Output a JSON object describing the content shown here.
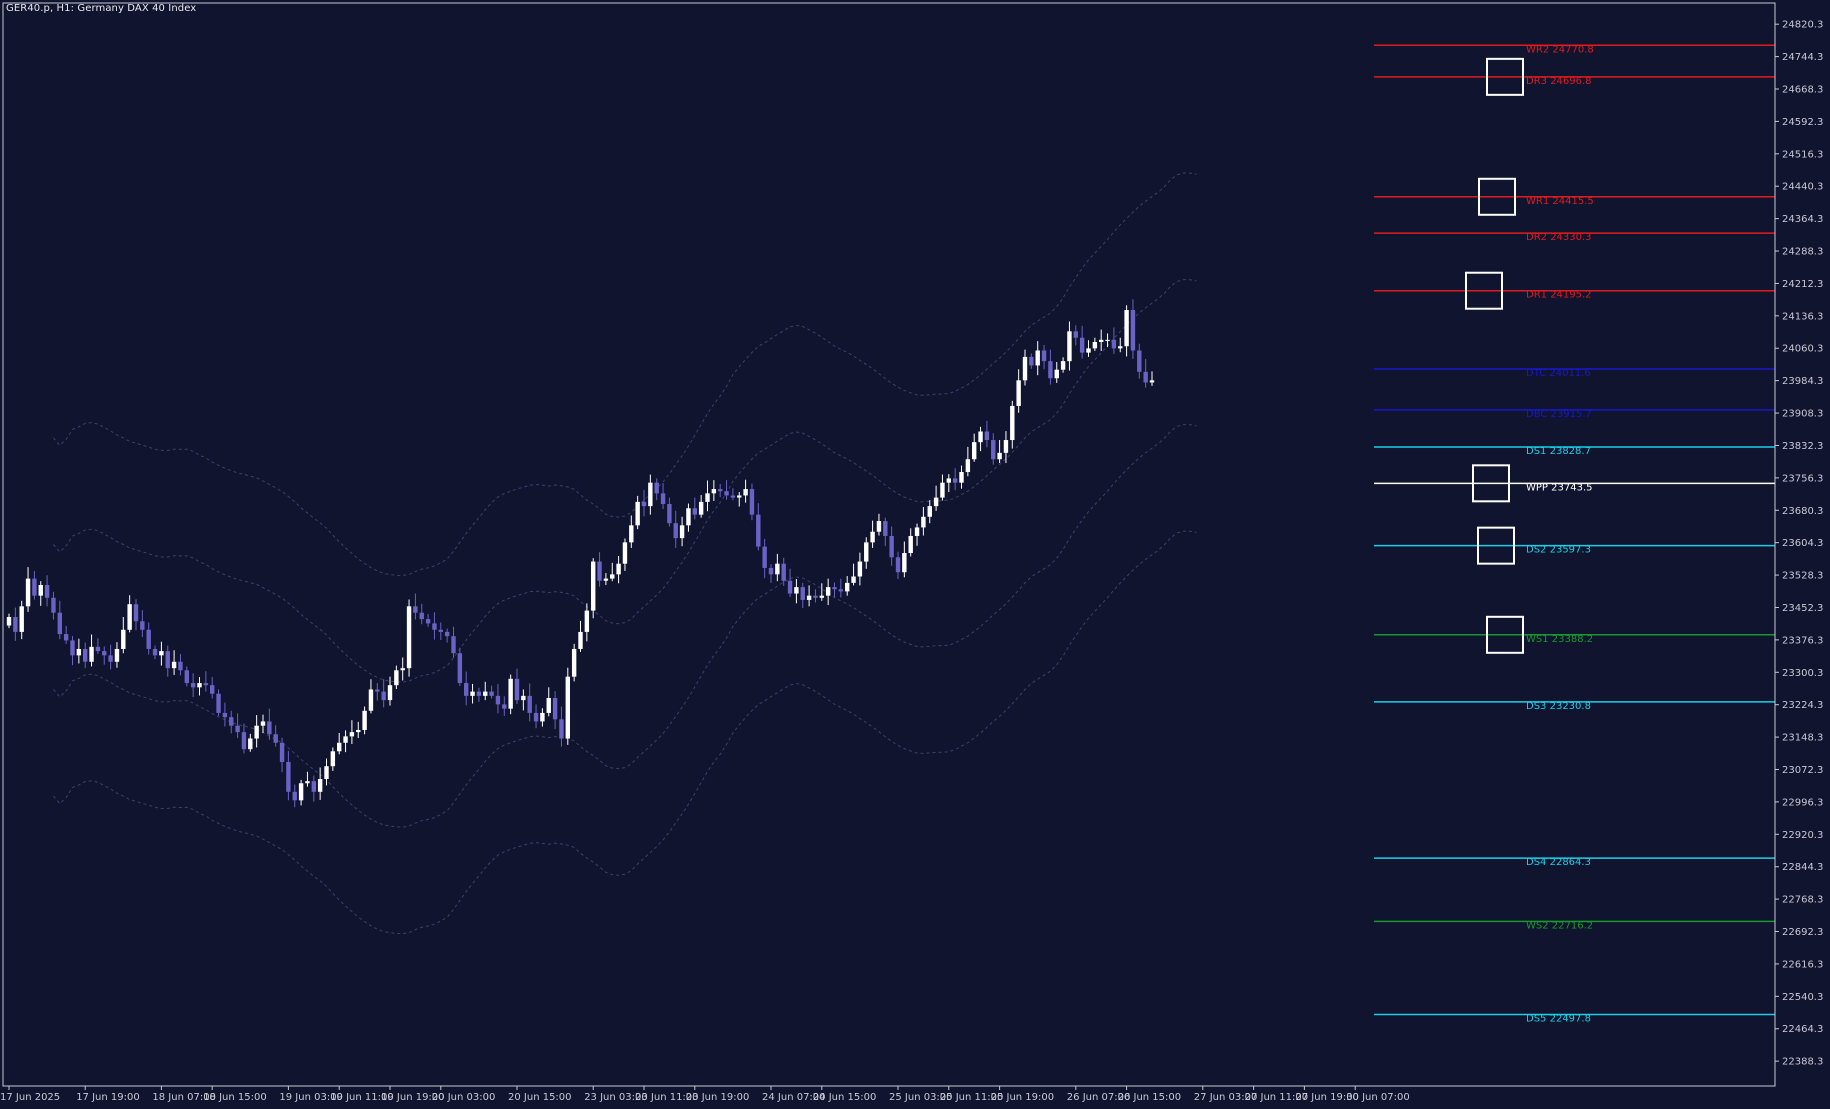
{
  "header": {
    "symbol_title": "GER40.p, H1:  Germany DAX 40 Index"
  },
  "colors": {
    "background": "#11142f",
    "axis": "#c8c8d4",
    "text": "#c8c8d4",
    "bull_candle": "#ffffff",
    "bear_candle": "#6a62c4",
    "band": "#3c4270"
  },
  "chart_data": {
    "type": "candlestick",
    "symbol": "GER40.p",
    "timeframe": "H1",
    "ylim": [
      22330,
      24870
    ],
    "y_ticks": [
      "24820.3",
      "24744.3",
      "24668.3",
      "24592.3",
      "24516.3",
      "24440.3",
      "24364.3",
      "24288.3",
      "24212.3",
      "24136.3",
      "24060.3",
      "23984.3",
      "23908.3",
      "23832.3",
      "23756.3",
      "23680.3",
      "23604.3",
      "23528.3",
      "23452.3",
      "23376.3",
      "23300.3",
      "23224.3",
      "23148.3",
      "23072.3",
      "22996.3",
      "22920.3",
      "22844.3",
      "22768.3",
      "22692.3",
      "22616.3",
      "22540.3",
      "22464.3",
      "22388.3"
    ],
    "x_ticks": [
      {
        "label": "17 Jun 2025",
        "bar": 0
      },
      {
        "label": "17 Jun 19:00",
        "bar": 12
      },
      {
        "label": "18 Jun 07:00",
        "bar": 24
      },
      {
        "label": "18 Jun 15:00",
        "bar": 32
      },
      {
        "label": "19 Jun 03:00",
        "bar": 44
      },
      {
        "label": "19 Jun 11:00",
        "bar": 52
      },
      {
        "label": "19 Jun 19:00",
        "bar": 60
      },
      {
        "label": "20 Jun 03:00",
        "bar": 68
      },
      {
        "label": "20 Jun 15:00",
        "bar": 80
      },
      {
        "label": "23 Jun 03:00",
        "bar": 92
      },
      {
        "label": "23 Jun 11:00",
        "bar": 100
      },
      {
        "label": "23 Jun 19:00",
        "bar": 108
      },
      {
        "label": "24 Jun 07:00",
        "bar": 120
      },
      {
        "label": "24 Jun 15:00",
        "bar": 128
      },
      {
        "label": "25 Jun 03:00",
        "bar": 140
      },
      {
        "label": "25 Jun 11:00",
        "bar": 148
      },
      {
        "label": "25 Jun 19:00",
        "bar": 156
      },
      {
        "label": "26 Jun 07:00",
        "bar": 168
      },
      {
        "label": "26 Jun 15:00",
        "bar": 176
      },
      {
        "label": "27 Jun 03:00",
        "bar": 188
      },
      {
        "label": "27 Jun 11:00",
        "bar": 196
      },
      {
        "label": "27 Jun 19:00",
        "bar": 204
      },
      {
        "label": "30 Jun 07:00",
        "bar": 212
      }
    ],
    "closes": [
      23430,
      23395,
      23455,
      23520,
      23480,
      23505,
      23475,
      23440,
      23390,
      23375,
      23340,
      23355,
      23325,
      23360,
      23350,
      23340,
      23325,
      23355,
      23400,
      23460,
      23420,
      23400,
      23355,
      23340,
      23350,
      23310,
      23325,
      23305,
      23275,
      23265,
      23275,
      23270,
      23250,
      23205,
      23195,
      23175,
      23160,
      23120,
      23145,
      23175,
      23185,
      23155,
      23135,
      23090,
      23020,
      23000,
      23040,
      23045,
      23020,
      23050,
      23080,
      23115,
      23135,
      23150,
      23160,
      23165,
      23210,
      23260,
      23255,
      23235,
      23270,
      23305,
      23310,
      23455,
      23440,
      23425,
      23415,
      23400,
      23395,
      23385,
      23345,
      23275,
      23245,
      23255,
      23245,
      23255,
      23245,
      23225,
      23215,
      23285,
      23235,
      23245,
      23205,
      23185,
      23205,
      23240,
      23190,
      23145,
      23290,
      23355,
      23395,
      23445,
      23560,
      23515,
      23520,
      23530,
      23555,
      23605,
      23645,
      23700,
      23690,
      23745,
      23720,
      23695,
      23650,
      23615,
      23645,
      23685,
      23670,
      23700,
      23720,
      23730,
      23725,
      23715,
      23710,
      23715,
      23730,
      23670,
      23595,
      23545,
      23530,
      23555,
      23515,
      23485,
      23500,
      23470,
      23480,
      23475,
      23480,
      23500,
      23495,
      23490,
      23510,
      23525,
      23560,
      23605,
      23630,
      23655,
      23620,
      23570,
      23535,
      23580,
      23620,
      23640,
      23665,
      23690,
      23710,
      23745,
      23755,
      23745,
      23770,
      23800,
      23840,
      23865,
      23845,
      23800,
      23815,
      23845,
      23925,
      23985,
      24040,
      24020,
      24055,
      24030,
      23990,
      24010,
      24030,
      24100,
      24085,
      24050,
      24060,
      24075,
      24080,
      24080,
      24060,
      24065,
      24150,
      24055,
      24005,
      23980,
      23985
    ],
    "reference_lines": [
      {
        "label": "WR2 24770.8",
        "value": 24770.8,
        "color": "#e01b1b"
      },
      {
        "label": "DR3 24696.8",
        "value": 24696.8,
        "color": "#e01b1b"
      },
      {
        "label": "WR1 24415.5",
        "value": 24415.5,
        "color": "#e01b1b"
      },
      {
        "label": "DR2 24330.3",
        "value": 24330.3,
        "color": "#e01b1b"
      },
      {
        "label": "DR1 24195.2",
        "value": 24195.2,
        "color": "#e01b1b"
      },
      {
        "label": "DTC 24011.6",
        "value": 24011.6,
        "color": "#1818c8"
      },
      {
        "label": "DBC 23915.7",
        "value": 23915.7,
        "color": "#1818c8"
      },
      {
        "label": "DS1 23828.7",
        "value": 23828.7,
        "color": "#19d0e6"
      },
      {
        "label": "WPP 23743.5",
        "value": 23743.5,
        "color": "#ffffff"
      },
      {
        "label": "DS2 23597.3",
        "value": 23597.3,
        "color": "#19d0e6"
      },
      {
        "label": "WS1 23388.2",
        "value": 23388.2,
        "color": "#159a2a"
      },
      {
        "label": "DS3 23230.8",
        "value": 23230.8,
        "color": "#19d0e6"
      },
      {
        "label": "DS4 22864.3",
        "value": 22864.3,
        "color": "#19d0e6"
      },
      {
        "label": "WS2 22716.2",
        "value": 22716.2,
        "color": "#159a2a"
      },
      {
        "label": "DS5 22497.8",
        "value": 22497.8,
        "color": "#19d0e6"
      }
    ],
    "marker_boxes": [
      24696.8,
      24415.5,
      24195.2,
      23743.5,
      23597.3,
      23388.2
    ]
  }
}
